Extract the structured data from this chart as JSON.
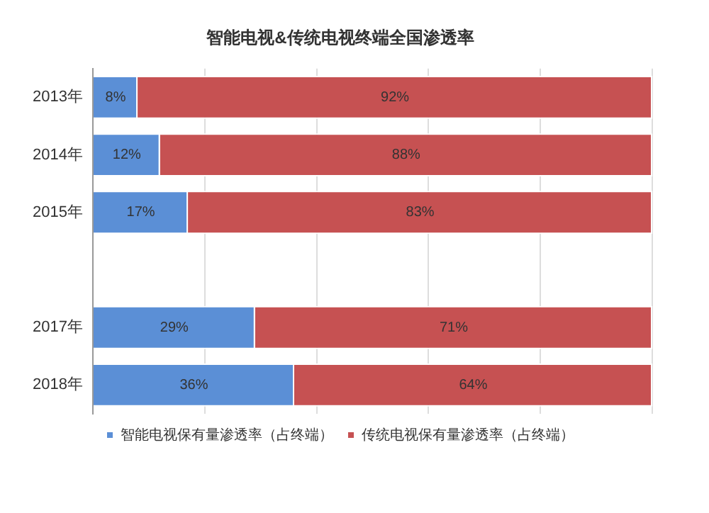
{
  "chart_data": {
    "type": "bar",
    "orientation": "horizontal",
    "stacked": true,
    "title": "智能电视&传统电视终端全国渗透率",
    "categories": [
      "2013年",
      "2014年",
      "2015年",
      null,
      "2017年",
      "2018年"
    ],
    "series": [
      {
        "name": "智能电视保有量渗透率（占终端）",
        "color": "#5b8fd6",
        "values": [
          8,
          12,
          17,
          null,
          29,
          36
        ],
        "value_labels": [
          "8%",
          "12%",
          "17%",
          null,
          "29%",
          "36%"
        ]
      },
      {
        "name": "传统电视保有量渗透率（占终端）",
        "color": "#c65152",
        "values": [
          92,
          88,
          83,
          null,
          71,
          64
        ],
        "value_labels": [
          "92%",
          "88%",
          "83%",
          null,
          "71%",
          "64%"
        ]
      }
    ],
    "xlim": [
      0,
      100
    ],
    "xticks": [
      {
        "value": 0,
        "label": null
      },
      {
        "value": 20,
        "label": null
      },
      {
        "value": 40,
        "label": null
      },
      {
        "value": 60,
        "label": null
      },
      {
        "value": 80,
        "label": null
      },
      {
        "value": 100,
        "label": null
      }
    ],
    "grid": "x",
    "tick_labels": "y",
    "legend": "bottom"
  }
}
